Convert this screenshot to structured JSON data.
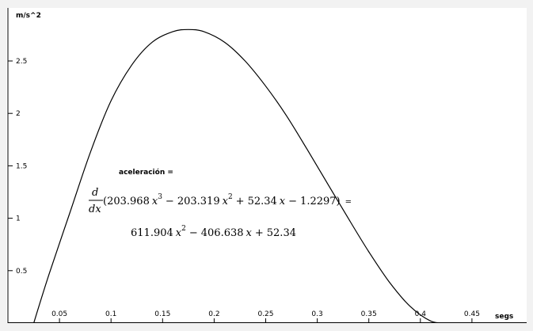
{
  "chart_data": {
    "type": "line",
    "ylabel": "m/s^2",
    "xlabel": "segs",
    "xlim": [
      0.0,
      0.49
    ],
    "ylim": [
      0.0,
      2.9
    ],
    "x_ticks": [
      0.05,
      0.1,
      0.15,
      0.2,
      0.25,
      0.3,
      0.35,
      0.4,
      0.45
    ],
    "x_tick_labels": [
      "0.05",
      "0.1",
      "0.15",
      "0.2",
      "0.25",
      "0.3",
      "0.35",
      "0.4",
      "0.45"
    ],
    "y_ticks": [
      0.5,
      1,
      1.5,
      2,
      2.5
    ],
    "y_tick_labels": [
      "0.5",
      "1",
      "1.5",
      "2",
      "2.5"
    ],
    "grid": false,
    "series": [
      {
        "x": [
          0.025,
          0.04,
          0.06,
          0.08,
          0.1,
          0.12,
          0.14,
          0.16,
          0.175,
          0.19,
          0.21,
          0.23,
          0.25,
          0.27,
          0.29,
          0.31,
          0.33,
          0.35,
          0.37,
          0.39,
          0.41,
          0.425
        ],
        "y": [
          0.0,
          0.47,
          1.05,
          1.63,
          2.12,
          2.46,
          2.68,
          2.78,
          2.8,
          2.78,
          2.68,
          2.5,
          2.26,
          1.98,
          1.66,
          1.33,
          1.0,
          0.68,
          0.39,
          0.16,
          0.02,
          0.0
        ],
        "color": "#000000"
      }
    ],
    "annotations": {
      "label": "aceleración =",
      "derivative_numerator": "d",
      "derivative_denominator": "dx",
      "expression": {
        "open": "(",
        "c3": "203.968",
        "op1": "−",
        "c2": "203.319",
        "op2": "+",
        "c1": "52.34",
        "op3": "−",
        "c0": "1.2297",
        "close": ")",
        "equals": "="
      },
      "result": {
        "c2": "611.904",
        "op1": "−",
        "c1": "406.638",
        "op2": "+",
        "c0": "52.34"
      },
      "var": "x",
      "exp2": "2",
      "exp3": "3"
    }
  }
}
